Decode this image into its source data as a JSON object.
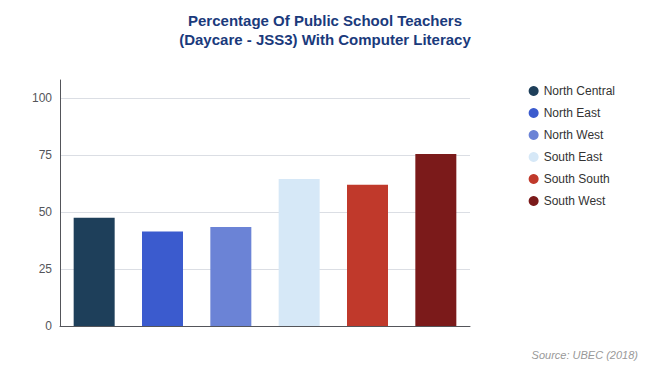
{
  "chart_data": {
    "type": "bar",
    "title": "Percentage Of Public School Teachers",
    "subtitle": "(Daycare - JSS3) With Computer Literacy",
    "categories": [
      "North Central",
      "North East",
      "North West",
      "South East",
      "South South",
      "South West"
    ],
    "values": [
      47.5,
      41.5,
      43.5,
      64.5,
      62.0,
      75.5
    ],
    "colors": [
      "#1e3f5a",
      "#3b5bce",
      "#6b83d6",
      "#d6e8f7",
      "#c0392b",
      "#7b1a1a"
    ],
    "ylim": [
      0,
      108
    ],
    "yticks": [
      0,
      25,
      50,
      75,
      100
    ],
    "grid": true,
    "legend": "right",
    "tick_labels": "y",
    "annotations": [
      "Source: UBEC (2018)"
    ]
  }
}
